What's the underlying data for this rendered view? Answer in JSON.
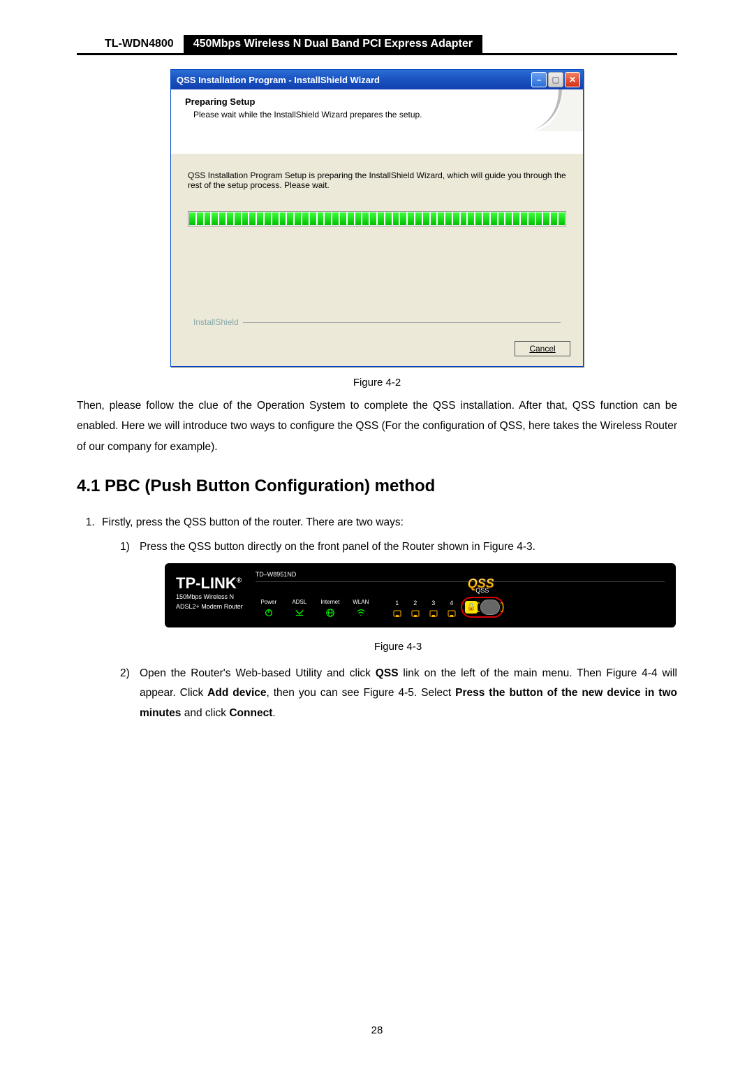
{
  "header": {
    "model": "TL-WDN4800",
    "title": "450Mbps Wireless N Dual Band PCI Express Adapter"
  },
  "dialog": {
    "title": "QSS Installation Program - InstallShield Wizard",
    "banner_heading": "Preparing Setup",
    "banner_sub": "Please wait while the InstallShield Wizard prepares the setup.",
    "body_text": "QSS Installation Program Setup is preparing the InstallShield Wizard, which will guide you through the rest of the setup process. Please wait.",
    "footer_brand": "InstallShield",
    "cancel": "Cancel",
    "progress_segments": 50
  },
  "fig42_caption": "Figure 4-2",
  "para1": "Then, please follow the clue of the Operation System to complete the QSS installation. After that, QSS function can be enabled. Here we will introduce two ways to configure the QSS (For the configuration of QSS, here takes the Wireless Router of our company for example).",
  "section_heading": "4.1  PBC (Push Button Configuration) method",
  "step1": "Firstly, press the QSS button of the router. There are two ways:",
  "step1_1": "Press the QSS button directly on the front panel of the Router shown in Figure 4-3.",
  "router": {
    "brand": "TP-LINK",
    "reg": "®",
    "sub1": "150Mbps Wireless N",
    "sub2": "ADSL2+ Modem Router",
    "model": "TD–W8951ND",
    "leds": [
      "Power",
      "ADSL",
      "Internet",
      "WLAN"
    ],
    "ports": [
      "1",
      "2",
      "3",
      "4"
    ],
    "qss_label": "QSS",
    "qss_big": "QSS"
  },
  "fig43_caption": "Figure 4-3",
  "step1_2_a": "Open the Router's Web-based Utility and click ",
  "step1_2_qss": "QSS",
  "step1_2_b": " link on the left of the main menu. Then Figure 4-4 will appear. Click ",
  "step1_2_add": "Add device",
  "step1_2_c": ", then you can see Figure 4-5. Select ",
  "step1_2_bold": "Press the button of the new device in two minutes",
  "step1_2_d": " and click ",
  "step1_2_connect": "Connect",
  "step1_2_e": ".",
  "page_number": "28"
}
